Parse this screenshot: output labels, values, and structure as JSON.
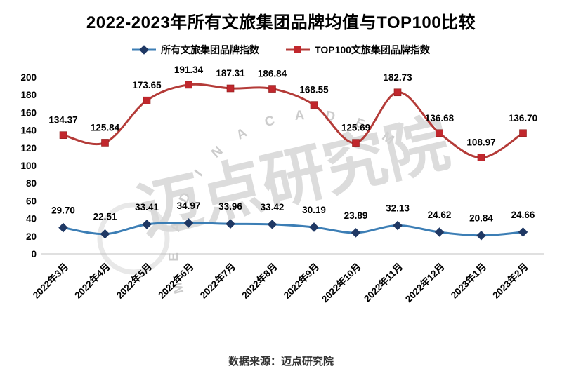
{
  "chart_data": {
    "type": "line",
    "title": "2022-2023年所有文旅集团品牌均值与TOP100比较",
    "categories": [
      "2022年3月",
      "2022年4月",
      "2022年5月",
      "2022年6月",
      "2022年7月",
      "2022年8月",
      "2022年9月",
      "2022年10月",
      "2022年11月",
      "2022年12月",
      "2023年1月",
      "2023年2月"
    ],
    "series": [
      {
        "name": "所有文旅集团品牌指数",
        "marker": "diamond",
        "line_color": "#3C7EB5",
        "marker_color": "#1F3864",
        "values": [
          29.7,
          22.51,
          33.41,
          34.97,
          33.96,
          33.42,
          30.19,
          23.89,
          32.13,
          24.62,
          20.84,
          24.66
        ]
      },
      {
        "name": "TOP100文旅集团品牌指数",
        "marker": "square",
        "line_color": "#B43B38",
        "marker_color": "#C1272D",
        "values": [
          134.37,
          125.84,
          173.65,
          191.34,
          187.31,
          186.84,
          168.55,
          125.69,
          182.73,
          136.68,
          108.97,
          136.7
        ]
      }
    ],
    "ylim": [
      0,
      200
    ],
    "y_ticks": [
      0,
      20,
      40,
      60,
      80,
      100,
      120,
      140,
      160,
      180,
      200
    ],
    "grid": false,
    "legend_position": "top",
    "label_decimals": 2
  },
  "watermark": {
    "text": "迈点研究院",
    "arc_text": "M E A D I N   A C A D E M Y"
  },
  "footer": {
    "source": "数据来源：迈点研究院"
  },
  "colors": {
    "axis_text": "#000000",
    "axis_line": "#c0c0c0",
    "watermark": "#d4d4d4"
  }
}
